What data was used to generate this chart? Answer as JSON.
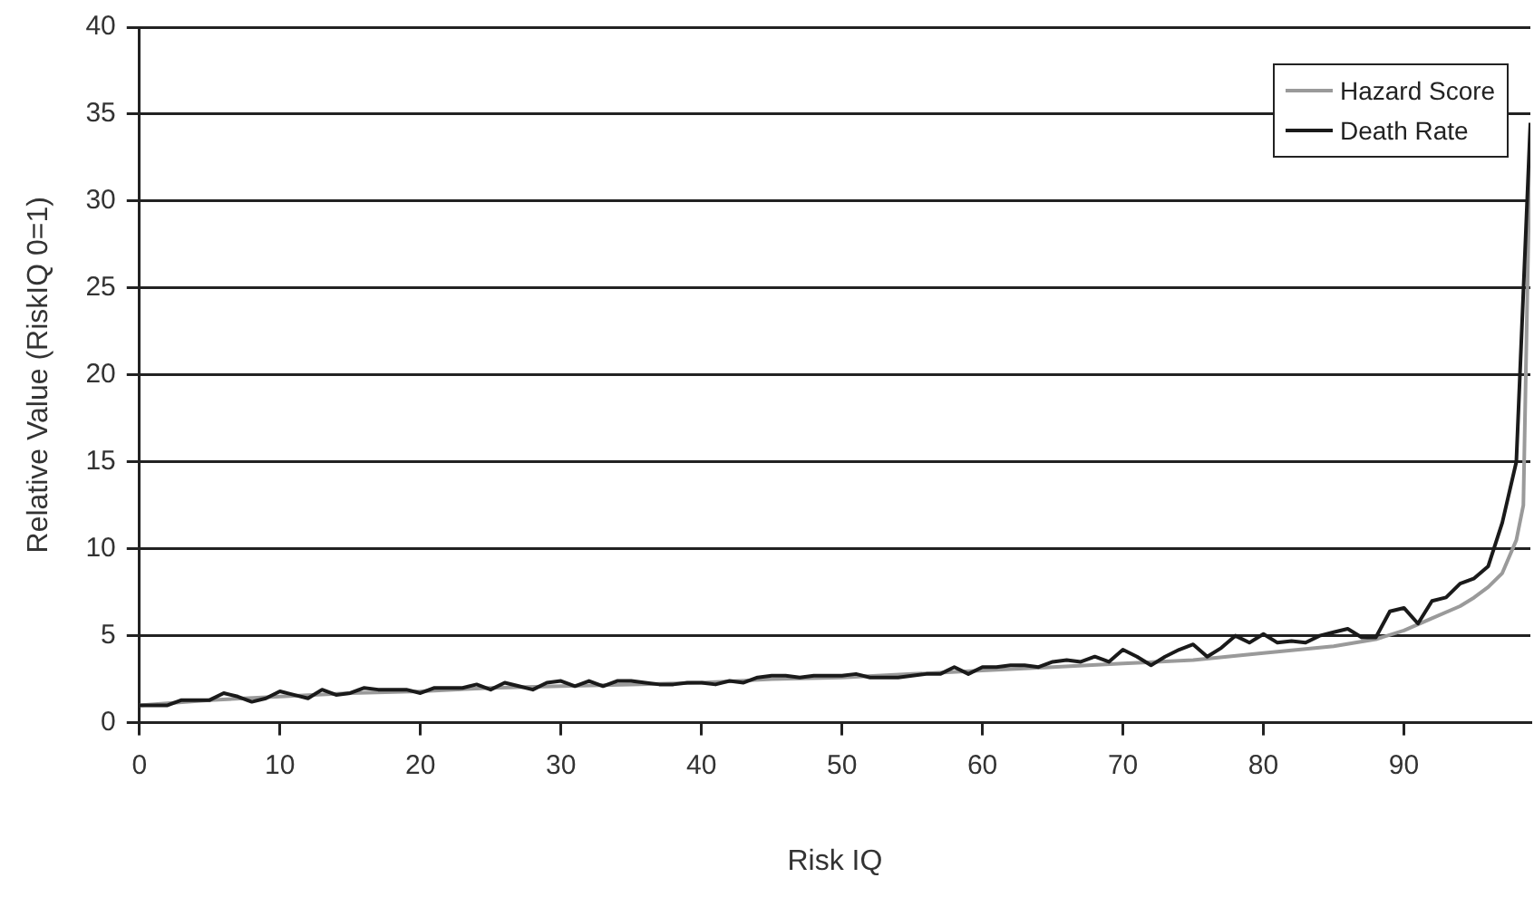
{
  "chart_data": {
    "type": "line",
    "xlabel": "Risk IQ",
    "ylabel": "Relative Value (RiskIQ 0=1)",
    "xlim": [
      0,
      99
    ],
    "xticks": [
      0,
      10,
      20,
      30,
      40,
      50,
      60,
      70,
      80,
      90
    ],
    "ylim": [
      0,
      40
    ],
    "yticks": [
      0,
      5,
      10,
      15,
      20,
      25,
      30,
      35,
      40
    ],
    "grid": "y",
    "legend": "top right",
    "marker": "none",
    "line_style": "solid",
    "series": [
      {
        "name": "Hazard Score",
        "color": "#9a9a9a",
        "x": [
          0,
          5,
          10,
          15,
          20,
          25,
          30,
          35,
          40,
          45,
          50,
          55,
          60,
          65,
          70,
          75,
          80,
          85,
          88,
          90,
          92,
          94,
          95,
          96,
          97,
          98,
          98.5,
          99
        ],
        "values": [
          1,
          1.3,
          1.5,
          1.7,
          1.8,
          2,
          2.1,
          2.2,
          2.3,
          2.5,
          2.6,
          2.8,
          3,
          3.2,
          3.4,
          3.6,
          4,
          4.4,
          4.8,
          5.3,
          6,
          6.7,
          7.2,
          7.8,
          8.6,
          10.5,
          12.5,
          34
        ]
      },
      {
        "name": "Death Rate",
        "color": "#1a1a1a",
        "x": [
          0,
          1,
          2,
          3,
          4,
          5,
          6,
          7,
          8,
          9,
          10,
          11,
          12,
          13,
          14,
          15,
          16,
          17,
          18,
          19,
          20,
          21,
          22,
          23,
          24,
          25,
          26,
          27,
          28,
          29,
          30,
          31,
          32,
          33,
          34,
          35,
          36,
          37,
          38,
          39,
          40,
          41,
          42,
          43,
          44,
          45,
          46,
          47,
          48,
          49,
          50,
          51,
          52,
          53,
          54,
          55,
          56,
          57,
          58,
          59,
          60,
          61,
          62,
          63,
          64,
          65,
          66,
          67,
          68,
          69,
          70,
          71,
          72,
          73,
          74,
          75,
          76,
          77,
          78,
          79,
          80,
          81,
          82,
          83,
          84,
          85,
          86,
          87,
          88,
          89,
          90,
          91,
          92,
          93,
          94,
          95,
          96,
          97,
          98,
          99
        ],
        "values": [
          1,
          1,
          1,
          1.3,
          1.3,
          1.3,
          1.7,
          1.5,
          1.2,
          1.4,
          1.8,
          1.6,
          1.4,
          1.9,
          1.6,
          1.7,
          2,
          1.9,
          1.9,
          1.9,
          1.7,
          2,
          2,
          2,
          2.2,
          1.9,
          2.3,
          2.1,
          1.9,
          2.3,
          2.4,
          2.1,
          2.4,
          2.1,
          2.4,
          2.4,
          2.3,
          2.2,
          2.2,
          2.3,
          2.3,
          2.2,
          2.4,
          2.3,
          2.6,
          2.7,
          2.7,
          2.6,
          2.7,
          2.7,
          2.7,
          2.8,
          2.6,
          2.6,
          2.6,
          2.7,
          2.8,
          2.8,
          3.2,
          2.8,
          3.2,
          3.2,
          3.3,
          3.3,
          3.2,
          3.5,
          3.6,
          3.5,
          3.8,
          3.5,
          4.2,
          3.8,
          3.3,
          3.8,
          4.2,
          4.5,
          3.8,
          4.3,
          5,
          4.6,
          5.1,
          4.6,
          4.7,
          4.6,
          5,
          5.2,
          5.4,
          4.9,
          4.9,
          6.4,
          6.6,
          5.7,
          7,
          7.2,
          8,
          8.3,
          9,
          11.5,
          15,
          34.5
        ]
      }
    ]
  }
}
